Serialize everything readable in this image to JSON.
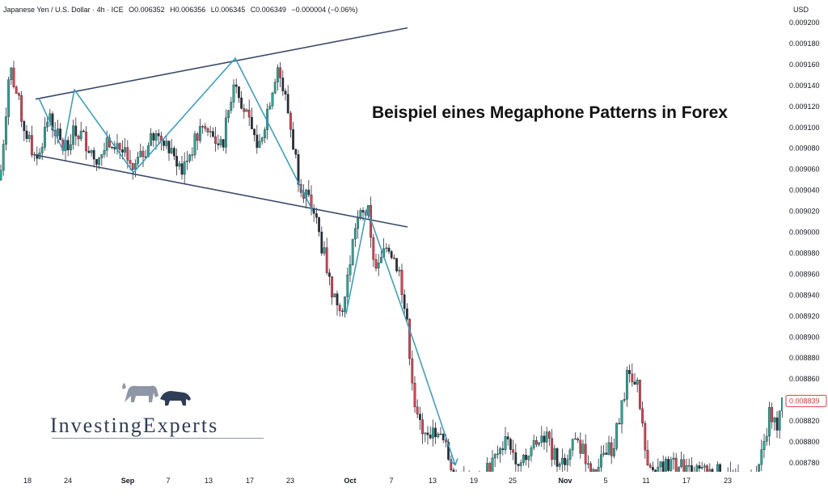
{
  "header": {
    "symbol": "Japanese Yen / U.S. Dollar · 4h · ICE",
    "open": "O0.006352",
    "high": "H0.006356",
    "low": "L0.006345",
    "close": "C0.006349",
    "change": "−0.000004 (−0.06%)"
  },
  "currency": "USD",
  "headline": "Beispiel eines Megaphone Patterns in Forex",
  "logo": {
    "text": "InvestingExperts",
    "icon": "bull-bear-icon"
  },
  "colors": {
    "up": "#22ab94",
    "down": "#f23645",
    "candle_body_dark": "#2a2e39",
    "trendline": "#3b4a6b",
    "zigzag": "#2e9fc4",
    "last_price": "#f23645"
  },
  "chart_data": {
    "type": "candlestick",
    "title": "Beispiel eines Megaphone Patterns in Forex",
    "ylabel": "USD",
    "ylim": [
      0.00877,
      0.00921
    ],
    "y_ticks": [
      "0.009200",
      "0.009180",
      "0.009160",
      "0.009140",
      "0.009120",
      "0.009100",
      "0.009080",
      "0.009060",
      "0.009040",
      "0.009020",
      "0.009000",
      "0.008980",
      "0.008960",
      "0.008940",
      "0.008920",
      "0.008900",
      "0.008880",
      "0.008860",
      "0.008840",
      "0.008820",
      "0.008800",
      "0.008780"
    ],
    "x_ticks": [
      "18",
      "24",
      "Sep",
      "7",
      "13",
      "17",
      "23",
      "Oct",
      "7",
      "13",
      "19",
      "25",
      "Nov",
      "5",
      "11",
      "17",
      "23"
    ],
    "last_price": "0.008839",
    "price_path": [
      [
        "18",
        0.00905
      ],
      [
        "18",
        0.00916
      ],
      [
        "18",
        0.0091
      ],
      [
        "24",
        0.00907
      ],
      [
        "24",
        0.00911
      ],
      [
        "24",
        0.00909
      ],
      [
        "Sep",
        0.00906
      ],
      [
        "Sep",
        0.0091
      ],
      [
        "7",
        0.00909
      ],
      [
        "7",
        0.00906
      ],
      [
        "13",
        0.00909
      ],
      [
        "13",
        0.00908
      ],
      [
        "17",
        0.00915
      ],
      [
        "17",
        0.00908
      ],
      [
        "23",
        0.00916
      ],
      [
        "23",
        0.00905
      ],
      [
        "Oct",
        0.00902
      ],
      [
        "Oct",
        0.00894
      ],
      [
        "Oct",
        0.00902
      ],
      [
        "7",
        0.00898
      ],
      [
        "7",
        0.0089
      ],
      [
        "13",
        0.00882
      ],
      [
        "13",
        0.00878
      ],
      [
        "19",
        0.00877
      ],
      [
        "25",
        0.00881
      ],
      [
        "25",
        0.00879
      ],
      [
        "Nov",
        0.0088
      ],
      [
        "5",
        0.00878
      ],
      [
        "5",
        0.0088
      ],
      [
        "11",
        0.00886
      ],
      [
        "11",
        0.00878
      ],
      [
        "17",
        0.00877
      ],
      [
        "23",
        0.00877
      ],
      [
        "23",
        0.00879
      ],
      [
        "23",
        0.00884
      ]
    ],
    "megaphone_upper": [
      [
        0.00913,
        "18"
      ],
      [
        0.00919,
        "23"
      ]
    ],
    "megaphone_lower": [
      [
        0.00908,
        "18"
      ],
      [
        0.009,
        "7"
      ]
    ],
    "zigzag": [
      0.00913,
      0.00908,
      0.00914,
      0.00906,
      0.00916,
      0.00902,
      0.00902,
      0.00892,
      0.00902,
      0.00892,
      0.00877
    ],
    "grid": false,
    "legend": "none"
  }
}
